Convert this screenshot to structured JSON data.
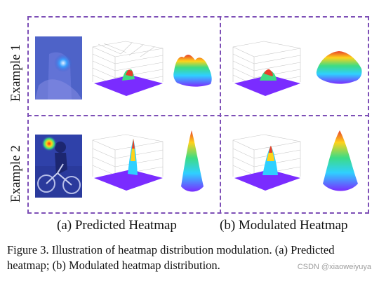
{
  "rows": [
    {
      "label": "Example 1"
    },
    {
      "label": "Example 2"
    }
  ],
  "columns": [
    {
      "label": "(a) Predicted Heatmap"
    },
    {
      "label": "(b) Modulated Heatmap"
    }
  ],
  "caption": "Figure 3. Illustration of heatmap distribution modulation. (a) Predicted heatmap; (b) Modulated heatmap distribution.",
  "watermark": "CSDN @xiaoweiyuya",
  "colors": {
    "frame": "#7d4fb6",
    "surface_low": "#7a2cff",
    "surface_high": "#e8402a"
  },
  "icons": [
    "person-crop-thumbnail",
    "cyclist-crop-thumbnail"
  ]
}
